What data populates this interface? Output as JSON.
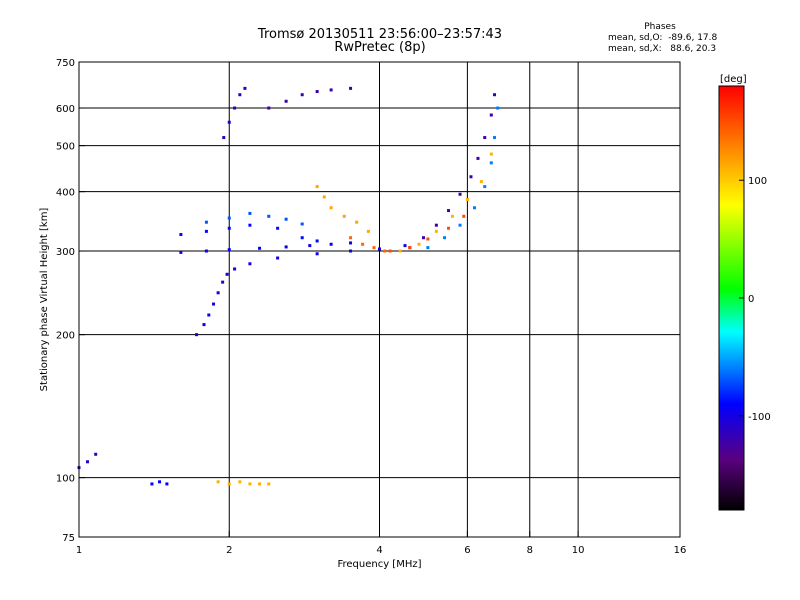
{
  "chart_data": {
    "type": "scatter",
    "title": "Tromsø 20130511 23:56:00–23:57:43",
    "subtitle": "RwPretec (8p)",
    "xlabel": "Frequency [MHz]",
    "ylabel": "Stationary phase Virtual Height [km]",
    "x_scale": "log",
    "y_scale": "log",
    "xlim": [
      1,
      16
    ],
    "ylim": [
      75,
      750
    ],
    "x_ticks": [
      1,
      2,
      4,
      6,
      8,
      10,
      16
    ],
    "x_tick_labels": [
      "1",
      "2",
      "4",
      "6",
      "8",
      "10",
      "16"
    ],
    "x_grid": [
      2,
      4,
      6,
      8,
      10
    ],
    "y_ticks": [
      75,
      100,
      200,
      300,
      400,
      500,
      600,
      750
    ],
    "y_tick_labels": [
      "75",
      "100",
      "200",
      "300",
      "400",
      "500",
      "600",
      "750"
    ],
    "y_grid": [
      100,
      200,
      300,
      400,
      500,
      600
    ],
    "grid": true,
    "colorbar": {
      "label": "[deg]",
      "range": [
        -180,
        180
      ],
      "ticks": [
        -100,
        0,
        100
      ],
      "tick_labels": [
        "-100",
        "0",
        "100"
      ]
    },
    "phase_stats": {
      "header": "Phases",
      "line_o": "mean, sd,O:  -89.6, 17.8",
      "line_x": "mean, sd,X:   88.6, 20.3"
    },
    "traces": [
      {
        "name": "",
        "phase": -100,
        "points": [
          [
            1.72,
            200
          ],
          [
            1.78,
            210
          ],
          [
            1.82,
            220
          ],
          [
            1.86,
            232
          ],
          [
            1.9,
            245
          ],
          [
            1.94,
            258
          ],
          [
            1.98,
            268
          ],
          [
            2.05,
            275
          ],
          [
            2.2,
            282
          ],
          [
            2.5,
            290
          ],
          [
            3.0,
            296
          ],
          [
            3.5,
            300
          ],
          [
            4.0,
            303
          ],
          [
            4.5,
            308
          ]
        ]
      },
      {
        "name": "",
        "phase": -95,
        "points": [
          [
            1.6,
            298
          ],
          [
            1.8,
            300
          ],
          [
            2.0,
            302
          ],
          [
            2.3,
            304
          ],
          [
            2.6,
            306
          ],
          [
            2.9,
            308
          ],
          [
            3.2,
            310
          ],
          [
            3.5,
            312
          ]
        ]
      },
      {
        "name": "",
        "phase": -88,
        "points": [
          [
            1.6,
            325
          ],
          [
            1.8,
            330
          ],
          [
            2.0,
            335
          ],
          [
            2.2,
            340
          ],
          [
            2.5,
            335
          ],
          [
            2.8,
            320
          ],
          [
            3.0,
            315
          ]
        ]
      },
      {
        "name": "",
        "phase": -70,
        "points": [
          [
            1.8,
            345
          ],
          [
            2.0,
            352
          ],
          [
            2.2,
            360
          ],
          [
            2.4,
            355
          ],
          [
            2.6,
            350
          ],
          [
            2.8,
            342
          ]
        ]
      },
      {
        "name": "",
        "phase": -110,
        "points": [
          [
            1.95,
            520
          ],
          [
            2.0,
            560
          ],
          [
            2.05,
            600
          ],
          [
            2.1,
            640
          ],
          [
            2.15,
            660
          ]
        ]
      },
      {
        "name": "",
        "phase": -120,
        "points": [
          [
            2.4,
            600
          ],
          [
            2.6,
            620
          ],
          [
            2.8,
            640
          ],
          [
            3.0,
            650
          ],
          [
            3.2,
            655
          ],
          [
            3.5,
            660
          ]
        ]
      },
      {
        "name": "",
        "phase": -120,
        "points": [
          [
            4.6,
            305
          ],
          [
            4.9,
            320
          ],
          [
            5.2,
            340
          ],
          [
            5.5,
            365
          ],
          [
            5.8,
            395
          ],
          [
            6.1,
            430
          ],
          [
            6.3,
            470
          ],
          [
            6.5,
            520
          ],
          [
            6.7,
            580
          ],
          [
            6.8,
            640
          ]
        ]
      },
      {
        "name": "",
        "phase": -60,
        "points": [
          [
            5.0,
            305
          ],
          [
            5.4,
            320
          ],
          [
            5.8,
            340
          ],
          [
            6.2,
            370
          ],
          [
            6.5,
            410
          ],
          [
            6.7,
            460
          ],
          [
            6.8,
            520
          ],
          [
            6.9,
            600
          ]
        ]
      },
      {
        "name": "",
        "phase": 110,
        "points": [
          [
            4.4,
            300
          ],
          [
            4.8,
            310
          ],
          [
            5.2,
            330
          ],
          [
            5.6,
            355
          ],
          [
            6.0,
            385
          ],
          [
            6.4,
            420
          ],
          [
            6.7,
            480
          ]
        ]
      },
      {
        "name": "",
        "phase": 150,
        "points": [
          [
            4.2,
            300
          ],
          [
            4.6,
            305
          ],
          [
            5.0,
            318
          ],
          [
            5.5,
            335
          ],
          [
            5.9,
            355
          ]
        ]
      },
      {
        "name": "",
        "phase": 115,
        "points": [
          [
            3.0,
            410
          ],
          [
            3.1,
            390
          ],
          [
            3.2,
            370
          ],
          [
            3.4,
            355
          ],
          [
            3.6,
            345
          ],
          [
            3.8,
            330
          ]
        ]
      },
      {
        "name": "",
        "phase": 140,
        "points": [
          [
            3.5,
            320
          ],
          [
            3.7,
            310
          ],
          [
            3.9,
            305
          ],
          [
            4.1,
            300
          ]
        ]
      },
      {
        "name": "",
        "phase": 110,
        "points": [
          [
            1.9,
            98
          ],
          [
            2.0,
            97
          ],
          [
            2.1,
            98
          ],
          [
            2.2,
            97
          ],
          [
            2.3,
            97
          ],
          [
            2.4,
            97
          ]
        ]
      },
      {
        "name": "",
        "phase": -90,
        "points": [
          [
            1.4,
            97
          ],
          [
            1.45,
            98
          ],
          [
            1.5,
            97
          ]
        ]
      },
      {
        "name": "",
        "phase": -110,
        "points": [
          [
            1.0,
            105
          ],
          [
            1.04,
            108
          ],
          [
            1.08,
            112
          ]
        ]
      }
    ]
  }
}
